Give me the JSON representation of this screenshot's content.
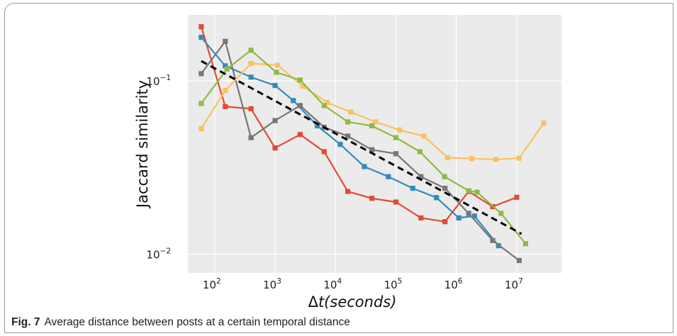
{
  "caption": {
    "label": "Fig. 7",
    "text": "Average distance between posts at a certain temporal distance"
  },
  "chart_data": {
    "type": "line",
    "xscale": "log",
    "yscale": "log",
    "xlabel": "Δt(seconds)",
    "xlabel_parts": {
      "prefix": "Δ",
      "italic": "t(seconds)"
    },
    "ylabel": "Jaccard similarity",
    "xlim": [
      36,
      55000000
    ],
    "ylim": [
      0.0078,
      0.24
    ],
    "grid": true,
    "x_ticks": [
      {
        "value": 100,
        "base": "10",
        "exp": "2"
      },
      {
        "value": 1000,
        "base": "10",
        "exp": "3"
      },
      {
        "value": 10000,
        "base": "10",
        "exp": "4"
      },
      {
        "value": 100000,
        "base": "10",
        "exp": "5"
      },
      {
        "value": 1000000,
        "base": "10",
        "exp": "6"
      },
      {
        "value": 10000000,
        "base": "10",
        "exp": "7"
      }
    ],
    "y_ticks": [
      {
        "value": 0.01,
        "base": "10",
        "exp": "−2"
      },
      {
        "value": 0.1,
        "base": "10",
        "exp": "−1"
      }
    ],
    "colors": {
      "background": "#ebebeb",
      "grid": "#ffffff",
      "fit": "#000000"
    },
    "series": [
      {
        "color": "#E24A33",
        "x": [
          60,
          150,
          400,
          1000,
          2600,
          6500,
          16000,
          40000,
          100000,
          260000,
          650000,
          1600000,
          4000000,
          10000000
        ],
        "y": [
          0.205,
          0.071,
          0.069,
          0.041,
          0.049,
          0.039,
          0.023,
          0.021,
          0.02,
          0.0162,
          0.0154,
          0.023,
          0.0188,
          0.0213
        ]
      },
      {
        "color": "#348ABD",
        "x": [
          60,
          150,
          400,
          1000,
          2000,
          5000,
          12000,
          30000,
          75000,
          190000,
          470000,
          1100000,
          2000000,
          5000000
        ],
        "y": [
          0.178,
          0.122,
          0.105,
          0.094,
          0.077,
          0.055,
          0.043,
          0.032,
          0.028,
          0.024,
          0.0212,
          0.0162,
          0.0166,
          0.0112
        ]
      },
      {
        "color": "#988ED5",
        "x": [
          60,
          150,
          400,
          1000,
          2600,
          6500,
          16000,
          40000,
          100000,
          260000,
          650000,
          1600000,
          4000000,
          10000000
        ],
        "y": [
          0.205,
          0.071,
          0.069,
          0.041,
          0.049,
          0.039,
          0.023,
          0.021,
          0.02,
          0.0162,
          0.0154,
          0.023,
          0.0188,
          0.0213
        ],
        "hidden": true
      },
      {
        "color": "#777777",
        "x": [
          60,
          150,
          400,
          1000,
          2600,
          6500,
          16000,
          40000,
          100000,
          260000,
          650000,
          1600000,
          4000000,
          11000000
        ],
        "y": [
          0.11,
          0.169,
          0.047,
          0.059,
          0.072,
          0.054,
          0.048,
          0.04,
          0.038,
          0.028,
          0.024,
          0.0172,
          0.012,
          0.0092
        ]
      },
      {
        "color": "#FBC15E",
        "x": [
          60,
          150,
          400,
          1100,
          2900,
          7300,
          18000,
          46000,
          115000,
          290000,
          720000,
          1800000,
          4500000,
          11000000,
          28000000
        ],
        "y": [
          0.053,
          0.088,
          0.126,
          0.123,
          0.093,
          0.075,
          0.066,
          0.058,
          0.052,
          0.048,
          0.036,
          0.0356,
          0.0352,
          0.0358,
          0.057
        ]
      },
      {
        "color": "#8EBA42",
        "x": [
          60,
          160,
          400,
          1050,
          2600,
          6500,
          16000,
          40000,
          100000,
          250000,
          640000,
          1600000,
          2200000,
          5500000,
          14000000
        ],
        "y": [
          0.074,
          0.117,
          0.15,
          0.112,
          0.101,
          0.072,
          0.058,
          0.055,
          0.047,
          0.039,
          0.028,
          0.0232,
          0.0228,
          0.0172,
          0.0115
        ]
      }
    ],
    "fit_line": {
      "x": [
        60,
        12000000
      ],
      "y": [
        0.13,
        0.0131
      ],
      "style": "dashed"
    }
  }
}
